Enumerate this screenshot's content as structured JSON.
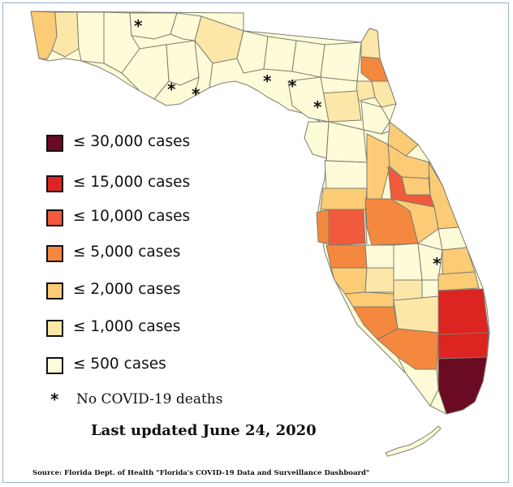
{
  "legend": [
    {
      "label": "≤ 30,000 cases",
      "color": "#6b0a23"
    },
    {
      "label": "≤ 15,000 cases",
      "color": "#dd2420"
    },
    {
      "label": "≤ 10,000 cases",
      "color": "#f15a3c"
    },
    {
      "label": "≤ 5,000 cases",
      "color": "#f5883f"
    },
    {
      "label": "≤ 2,000 cases",
      "color": "#fbcb75"
    },
    {
      "label": "≤ 1,000 cases",
      "color": "#fde7a8"
    },
    {
      "label": "≤ 500 cases",
      "color": "#fefbd8"
    }
  ],
  "no_deaths": {
    "symbol": "*",
    "label": "No COVID-19 deaths"
  },
  "updated": "Last updated June 24, 2020",
  "source": "Source: Florida Dept. of Health \"Florida's COVID-19 Data and Surveillance Dashboard\"",
  "colors": {
    "border": "#7d7d70",
    "frame": "#9bb0c8"
  }
}
